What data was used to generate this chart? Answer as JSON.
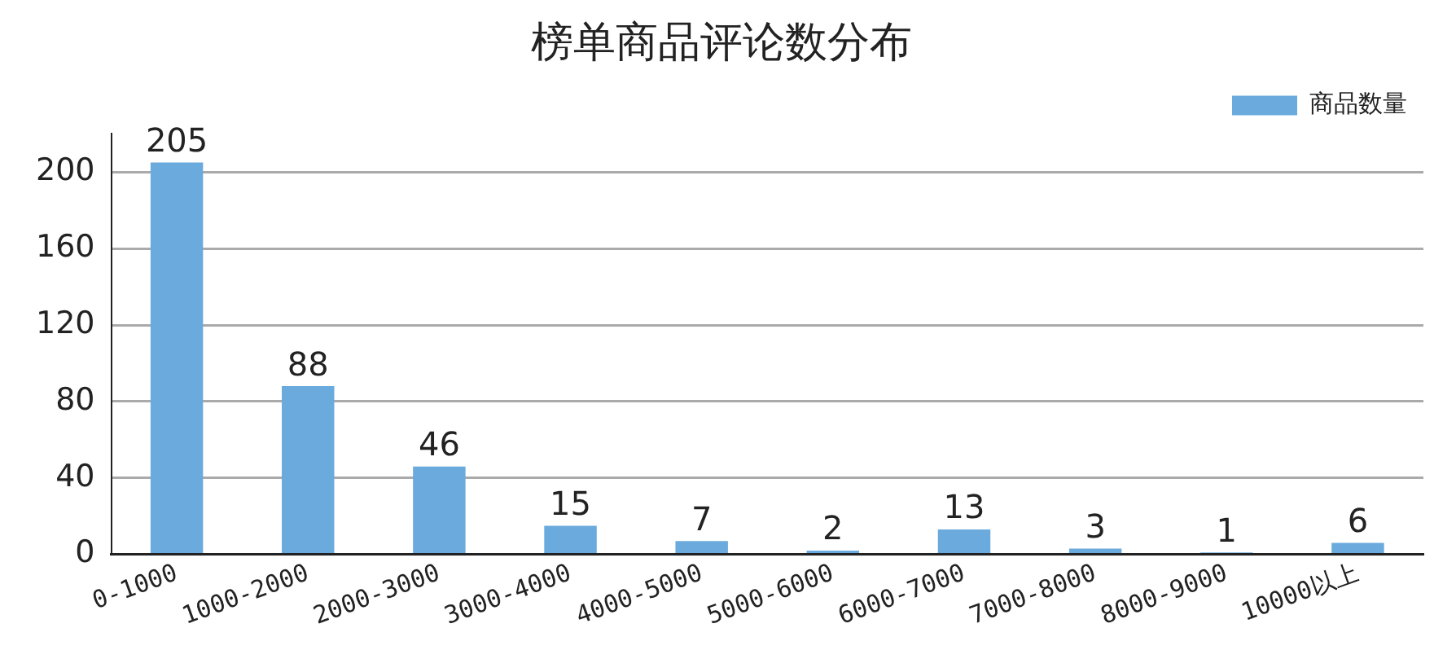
{
  "chart_data": {
    "type": "bar",
    "title": "榜单商品评论数分布",
    "categories": [
      "0-1000",
      "1000-2000",
      "2000-3000",
      "3000-4000",
      "4000-5000",
      "5000-6000",
      "6000-7000",
      "7000-8000",
      "8000-9000",
      "10000以上"
    ],
    "series": [
      {
        "name": "商品数量",
        "color": "#6aaadd",
        "values": [
          205,
          88,
          46,
          15,
          7,
          2,
          13,
          3,
          1,
          6
        ]
      }
    ],
    "ylim": [
      0,
      220
    ],
    "yticks": [
      0,
      40,
      80,
      120,
      160,
      200
    ],
    "grid": "y",
    "legend": "top right",
    "data_labels": true
  }
}
